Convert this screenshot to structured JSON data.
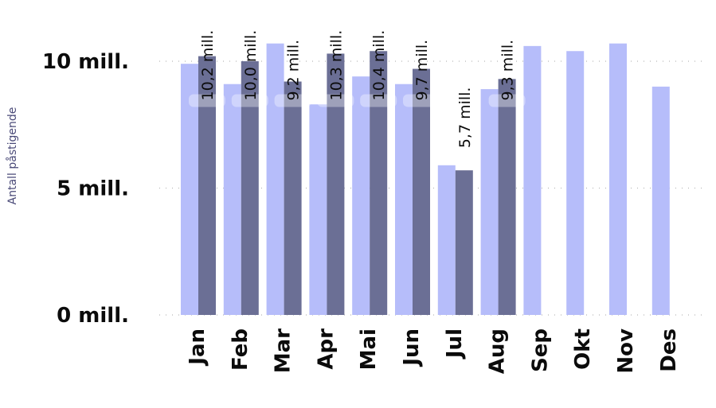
{
  "chart_data": {
    "type": "bar",
    "categories": [
      "Jan",
      "Feb",
      "Mar",
      "Apr",
      "Mai",
      "Jun",
      "Jul",
      "Aug",
      "Sep",
      "Okt",
      "Nov",
      "Des"
    ],
    "series": [
      {
        "values": [
          9.9,
          9.1,
          10.7,
          8.3,
          9.4,
          9.1,
          5.9,
          8.9,
          10.6,
          10.4,
          10.7,
          9.0
        ],
        "color": "#b6bdfa"
      },
      {
        "values": [
          10.2,
          10.0,
          9.2,
          10.3,
          10.4,
          9.7,
          5.7,
          9.3,
          null,
          null,
          null,
          null
        ],
        "data_labels": [
          "10,2 mill.",
          "10,0 mill.",
          "9,2 mill.",
          "10,3 mill.",
          "10,4 mill.",
          "9,7 mill.",
          "5,7 mill.",
          "9,3 mill.",
          null,
          null,
          null,
          null
        ],
        "color": "#6b6f95"
      }
    ],
    "ylabel": "Antall påstigende",
    "yticks": [
      {
        "value": 0,
        "label": "0 mill."
      },
      {
        "value": 5,
        "label": "5 mill."
      },
      {
        "value": 10,
        "label": "10 mill."
      }
    ],
    "ylim": [
      0,
      10.9
    ],
    "grid": true,
    "legend": "none"
  }
}
